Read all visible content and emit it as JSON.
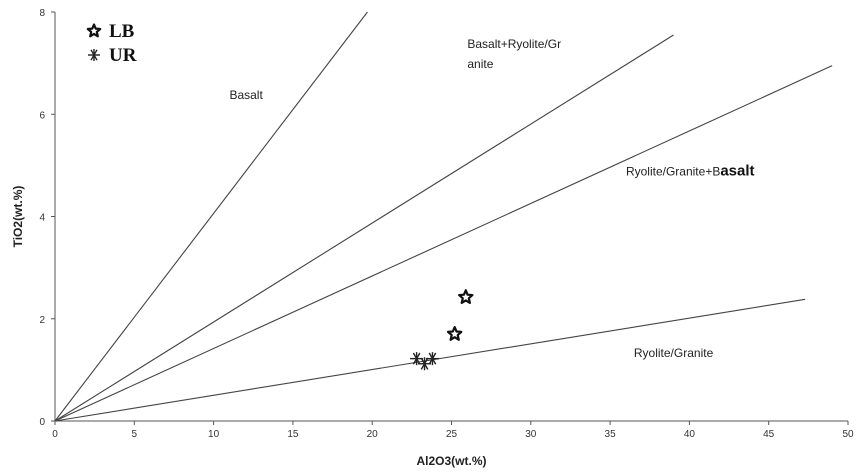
{
  "chart_data": {
    "type": "scatter",
    "title": "",
    "xlabel": "Al2O3(wt.%)",
    "ylabel": "TiO2(wt.%)",
    "xlim": [
      0,
      50
    ],
    "ylim": [
      0,
      8
    ],
    "x_ticks": [
      "0",
      "5",
      "10",
      "15",
      "20",
      "25",
      "30",
      "35",
      "40",
      "45",
      "50"
    ],
    "y_ticks": [
      "0",
      "2",
      "4",
      "6",
      "8"
    ],
    "grid": false,
    "legend_position": "top-left",
    "series": [
      {
        "name": "LB",
        "marker": "star-outline",
        "points": [
          {
            "x": 25.9,
            "y": 2.42
          },
          {
            "x": 25.2,
            "y": 1.7
          }
        ]
      },
      {
        "name": "UR",
        "marker": "asterisk",
        "points": [
          {
            "x": 22.8,
            "y": 1.22
          },
          {
            "x": 23.3,
            "y": 1.12
          },
          {
            "x": 23.8,
            "y": 1.22
          }
        ]
      }
    ],
    "boundary_lines": [
      {
        "from": [
          0,
          0
        ],
        "to": [
          19.7,
          8
        ]
      },
      {
        "from": [
          0,
          0
        ],
        "to": [
          39,
          7.55
        ]
      },
      {
        "from": [
          0,
          0
        ],
        "to": [
          49,
          6.95
        ]
      },
      {
        "from": [
          0,
          0
        ],
        "to": [
          47.3,
          2.38
        ]
      }
    ],
    "field_labels": [
      {
        "label": "Basalt",
        "at": [
          11,
          6.3
        ]
      },
      {
        "label": "Basalt+Ryolite/Gr",
        "at": [
          26,
          7.3
        ]
      },
      {
        "label": "anite",
        "at": [
          26,
          6.9
        ]
      },
      {
        "label": "Ryolite/Granite+B",
        "at": [
          36,
          4.8
        ],
        "suffix": "asalt"
      },
      {
        "label": "Ryolite/Granite",
        "at": [
          36.5,
          1.25
        ]
      }
    ]
  }
}
